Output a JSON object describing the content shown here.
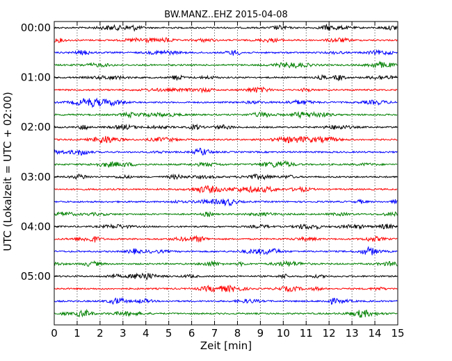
{
  "chart_data": {
    "type": "line",
    "title": "BW.MANZ..EHZ 2015-04-08",
    "xlabel": "Zeit  [min]",
    "ylabel": "UTC (Lokalzeit = UTC + 02:00)",
    "xlim": [
      0,
      15
    ],
    "xticks": [
      "0",
      "1",
      "2",
      "3",
      "4",
      "5",
      "6",
      "7",
      "8",
      "9",
      "10",
      "11",
      "12",
      "13",
      "14",
      "15"
    ],
    "yticks": [
      "00:00",
      "01:00",
      "02:00",
      "03:00",
      "04:00",
      "05:00"
    ],
    "trace_offsets_min": [
      0,
      15,
      30,
      45,
      60,
      75,
      90,
      105,
      120,
      135,
      150,
      165,
      180,
      195,
      210,
      225,
      240,
      255,
      270,
      285,
      300,
      315,
      330,
      345
    ],
    "trace_colors": [
      "#000000",
      "#ff0000",
      "#0000ff",
      "#008000"
    ],
    "grid_x": "dotted",
    "grid_y": false,
    "legend": "none"
  }
}
